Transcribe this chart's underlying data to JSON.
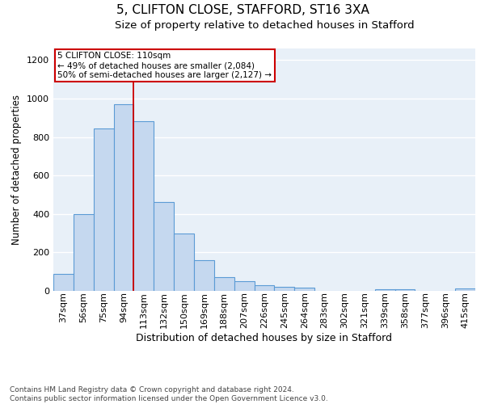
{
  "title1": "5, CLIFTON CLOSE, STAFFORD, ST16 3XA",
  "title2": "Size of property relative to detached houses in Stafford",
  "xlabel": "Distribution of detached houses by size in Stafford",
  "ylabel": "Number of detached properties",
  "categories": [
    "37sqm",
    "56sqm",
    "75sqm",
    "94sqm",
    "113sqm",
    "132sqm",
    "150sqm",
    "169sqm",
    "188sqm",
    "207sqm",
    "226sqm",
    "245sqm",
    "264sqm",
    "283sqm",
    "302sqm",
    "321sqm",
    "339sqm",
    "358sqm",
    "377sqm",
    "396sqm",
    "415sqm"
  ],
  "values": [
    90,
    400,
    845,
    970,
    880,
    460,
    300,
    160,
    70,
    50,
    30,
    22,
    15,
    0,
    0,
    0,
    10,
    10,
    0,
    0,
    13
  ],
  "bar_color": "#c5d8ef",
  "bar_edge_color": "#5b9bd5",
  "vline_color": "#cc0000",
  "annotation_text": "5 CLIFTON CLOSE: 110sqm\n← 49% of detached houses are smaller (2,084)\n50% of semi-detached houses are larger (2,127) →",
  "annotation_box_color": "#ffffff",
  "annotation_box_edge": "#cc0000",
  "footnote": "Contains HM Land Registry data © Crown copyright and database right 2024.\nContains public sector information licensed under the Open Government Licence v3.0.",
  "ylim": [
    0,
    1260
  ],
  "yticks": [
    0,
    200,
    400,
    600,
    800,
    1000,
    1200
  ],
  "bg_color": "#e8f0f8",
  "grid_color": "#ffffff",
  "title1_fontsize": 11,
  "title2_fontsize": 9.5,
  "xlabel_fontsize": 9,
  "ylabel_fontsize": 8.5,
  "tick_fontsize": 8,
  "annot_fontsize": 7.5,
  "footnote_fontsize": 6.5
}
